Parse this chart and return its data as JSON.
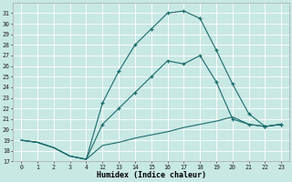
{
  "background_color": "#c8e8e4",
  "grid_color": "#b0d8d4",
  "line_color": "#1a6b6b",
  "xlabel": "Humidex (Indice chaleur)",
  "ylim": [
    17,
    32
  ],
  "yticks": [
    17,
    18,
    19,
    20,
    21,
    22,
    23,
    24,
    25,
    26,
    27,
    28,
    29,
    30,
    31
  ],
  "xticks": [
    0,
    1,
    2,
    3,
    4,
    12,
    13,
    14,
    15,
    16,
    17,
    18,
    19,
    20,
    21,
    22,
    23
  ],
  "line1_x": [
    0,
    1,
    2,
    3,
    4,
    12,
    13,
    14,
    15,
    16,
    17,
    18,
    19,
    20,
    21,
    22,
    23
  ],
  "line1_y": [
    19.0,
    18.8,
    18.3,
    17.5,
    17.2,
    18.5,
    18.8,
    19.2,
    19.5,
    19.8,
    20.2,
    20.5,
    20.8,
    21.2,
    20.5,
    20.3,
    20.5
  ],
  "line2_x": [
    0,
    1,
    2,
    3,
    4,
    12,
    13,
    14,
    15,
    16,
    17,
    18,
    19,
    20,
    21,
    22,
    23
  ],
  "line2_y": [
    19.0,
    18.8,
    18.3,
    17.5,
    17.2,
    20.5,
    22.0,
    23.5,
    25.0,
    26.5,
    26.2,
    27.0,
    24.5,
    21.0,
    20.5,
    20.3,
    20.5
  ],
  "line3_x": [
    0,
    1,
    2,
    3,
    4,
    12,
    13,
    14,
    15,
    16,
    17,
    18,
    19,
    20,
    21,
    22,
    23
  ],
  "line3_y": [
    19.0,
    18.8,
    18.3,
    17.5,
    17.2,
    22.5,
    25.5,
    28.0,
    29.5,
    31.0,
    31.2,
    30.5,
    27.5,
    24.3,
    21.5,
    20.3,
    20.5
  ],
  "figsize": [
    3.2,
    2.0
  ],
  "dpi": 100
}
